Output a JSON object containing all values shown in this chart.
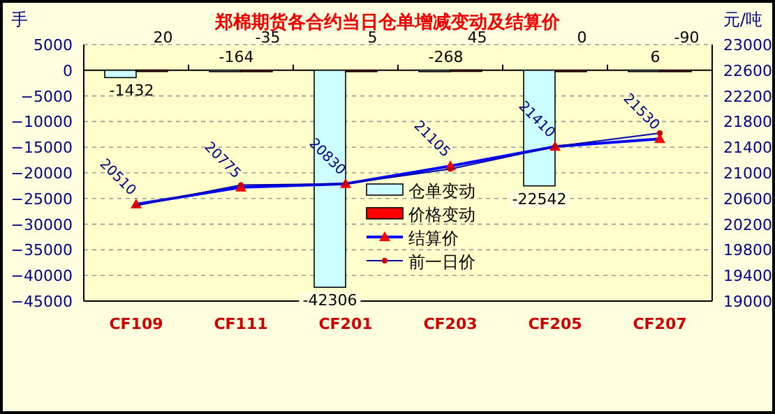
{
  "chart_data": {
    "type": "bar",
    "title": "郑棉期货各合约当日仓单增减变动及结算价",
    "ylabel": "手",
    "y2label": "元/吨",
    "categories": [
      "CF109",
      "CF111",
      "CF201",
      "CF203",
      "CF205",
      "CF207"
    ],
    "series": [
      {
        "name": "仓单变动",
        "color": "#ccffff",
        "values": [
          -1432,
          -164,
          -42306,
          -268,
          -22542,
          6
        ],
        "value_labels": [
          "-1432",
          "-164",
          "-42306",
          "-268",
          "-22542",
          "6"
        ]
      },
      {
        "name": "价格变动",
        "color": "#ff0000",
        "values": [
          20,
          -35,
          5,
          45,
          0,
          -90
        ],
        "value_labels": [
          "20",
          "-35",
          "5",
          "45",
          "0",
          "-90"
        ]
      },
      {
        "name": "结算价",
        "type": "line",
        "axis": "y2",
        "color": "#0000ff",
        "marker": "triangle",
        "values": [
          20510,
          20775,
          20830,
          21105,
          21410,
          21530
        ],
        "value_labels": [
          "20510",
          "20775",
          "20830",
          "21105",
          "21410",
          "21530"
        ]
      },
      {
        "name": "前一日价",
        "type": "line",
        "axis": "y2",
        "color": "#0000aa",
        "marker": "circle",
        "values": [
          20490,
          20810,
          20830,
          21060,
          21410,
          21620
        ]
      }
    ],
    "ylim": [
      -45000,
      5000
    ],
    "yticks": [
      -45000,
      -40000,
      -35000,
      -30000,
      -25000,
      -20000,
      -15000,
      -10000,
      -5000,
      0,
      5000
    ],
    "y2lim": [
      19000,
      23000
    ],
    "y2ticks": [
      19000,
      19400,
      19800,
      20200,
      20600,
      21000,
      21400,
      21800,
      22200,
      22600,
      23000
    ],
    "grid": "y",
    "legend": "bottom"
  }
}
